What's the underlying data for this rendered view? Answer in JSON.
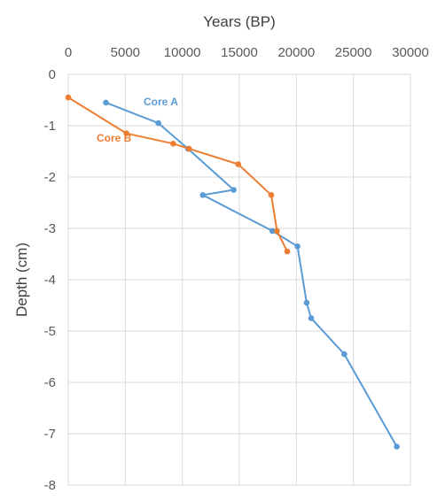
{
  "chart_data": {
    "type": "scatter",
    "xlabel": "Years (BP)",
    "ylabel": "Depth (cm)",
    "xlim": [
      0,
      30000
    ],
    "ylim": [
      -8,
      0
    ],
    "x_ticks": [
      "0",
      "5000",
      "10000",
      "15000",
      "20000",
      "25000",
      "30000"
    ],
    "y_ticks": [
      "0",
      "-1",
      "-2",
      "-3",
      "-4",
      "-5",
      "-6",
      "-7",
      "-8"
    ],
    "x_axis_position": "top",
    "grid": true,
    "series": [
      {
        "name": "Core A",
        "color": "#5B9BD5",
        "points": [
          {
            "x": 3300,
            "y": -0.55
          },
          {
            "x": 7900,
            "y": -0.95
          },
          {
            "x": 10500,
            "y": -1.45
          },
          {
            "x": 14500,
            "y": -2.25
          },
          {
            "x": 11800,
            "y": -2.35
          },
          {
            "x": 17900,
            "y": -3.05
          },
          {
            "x": 20100,
            "y": -3.35
          },
          {
            "x": 20900,
            "y": -4.45
          },
          {
            "x": 21300,
            "y": -4.75
          },
          {
            "x": 24200,
            "y": -5.45
          },
          {
            "x": 28800,
            "y": -7.25
          }
        ]
      },
      {
        "name": "Core B",
        "color": "#ED7D31",
        "points": [
          {
            "x": 0,
            "y": -0.45
          },
          {
            "x": 5100,
            "y": -1.15
          },
          {
            "x": 9200,
            "y": -1.35
          },
          {
            "x": 10600,
            "y": -1.45
          },
          {
            "x": 14900,
            "y": -1.75
          },
          {
            "x": 17800,
            "y": -2.35
          },
          {
            "x": 18300,
            "y": -3.05
          },
          {
            "x": 19200,
            "y": -3.45
          }
        ]
      }
    ]
  }
}
